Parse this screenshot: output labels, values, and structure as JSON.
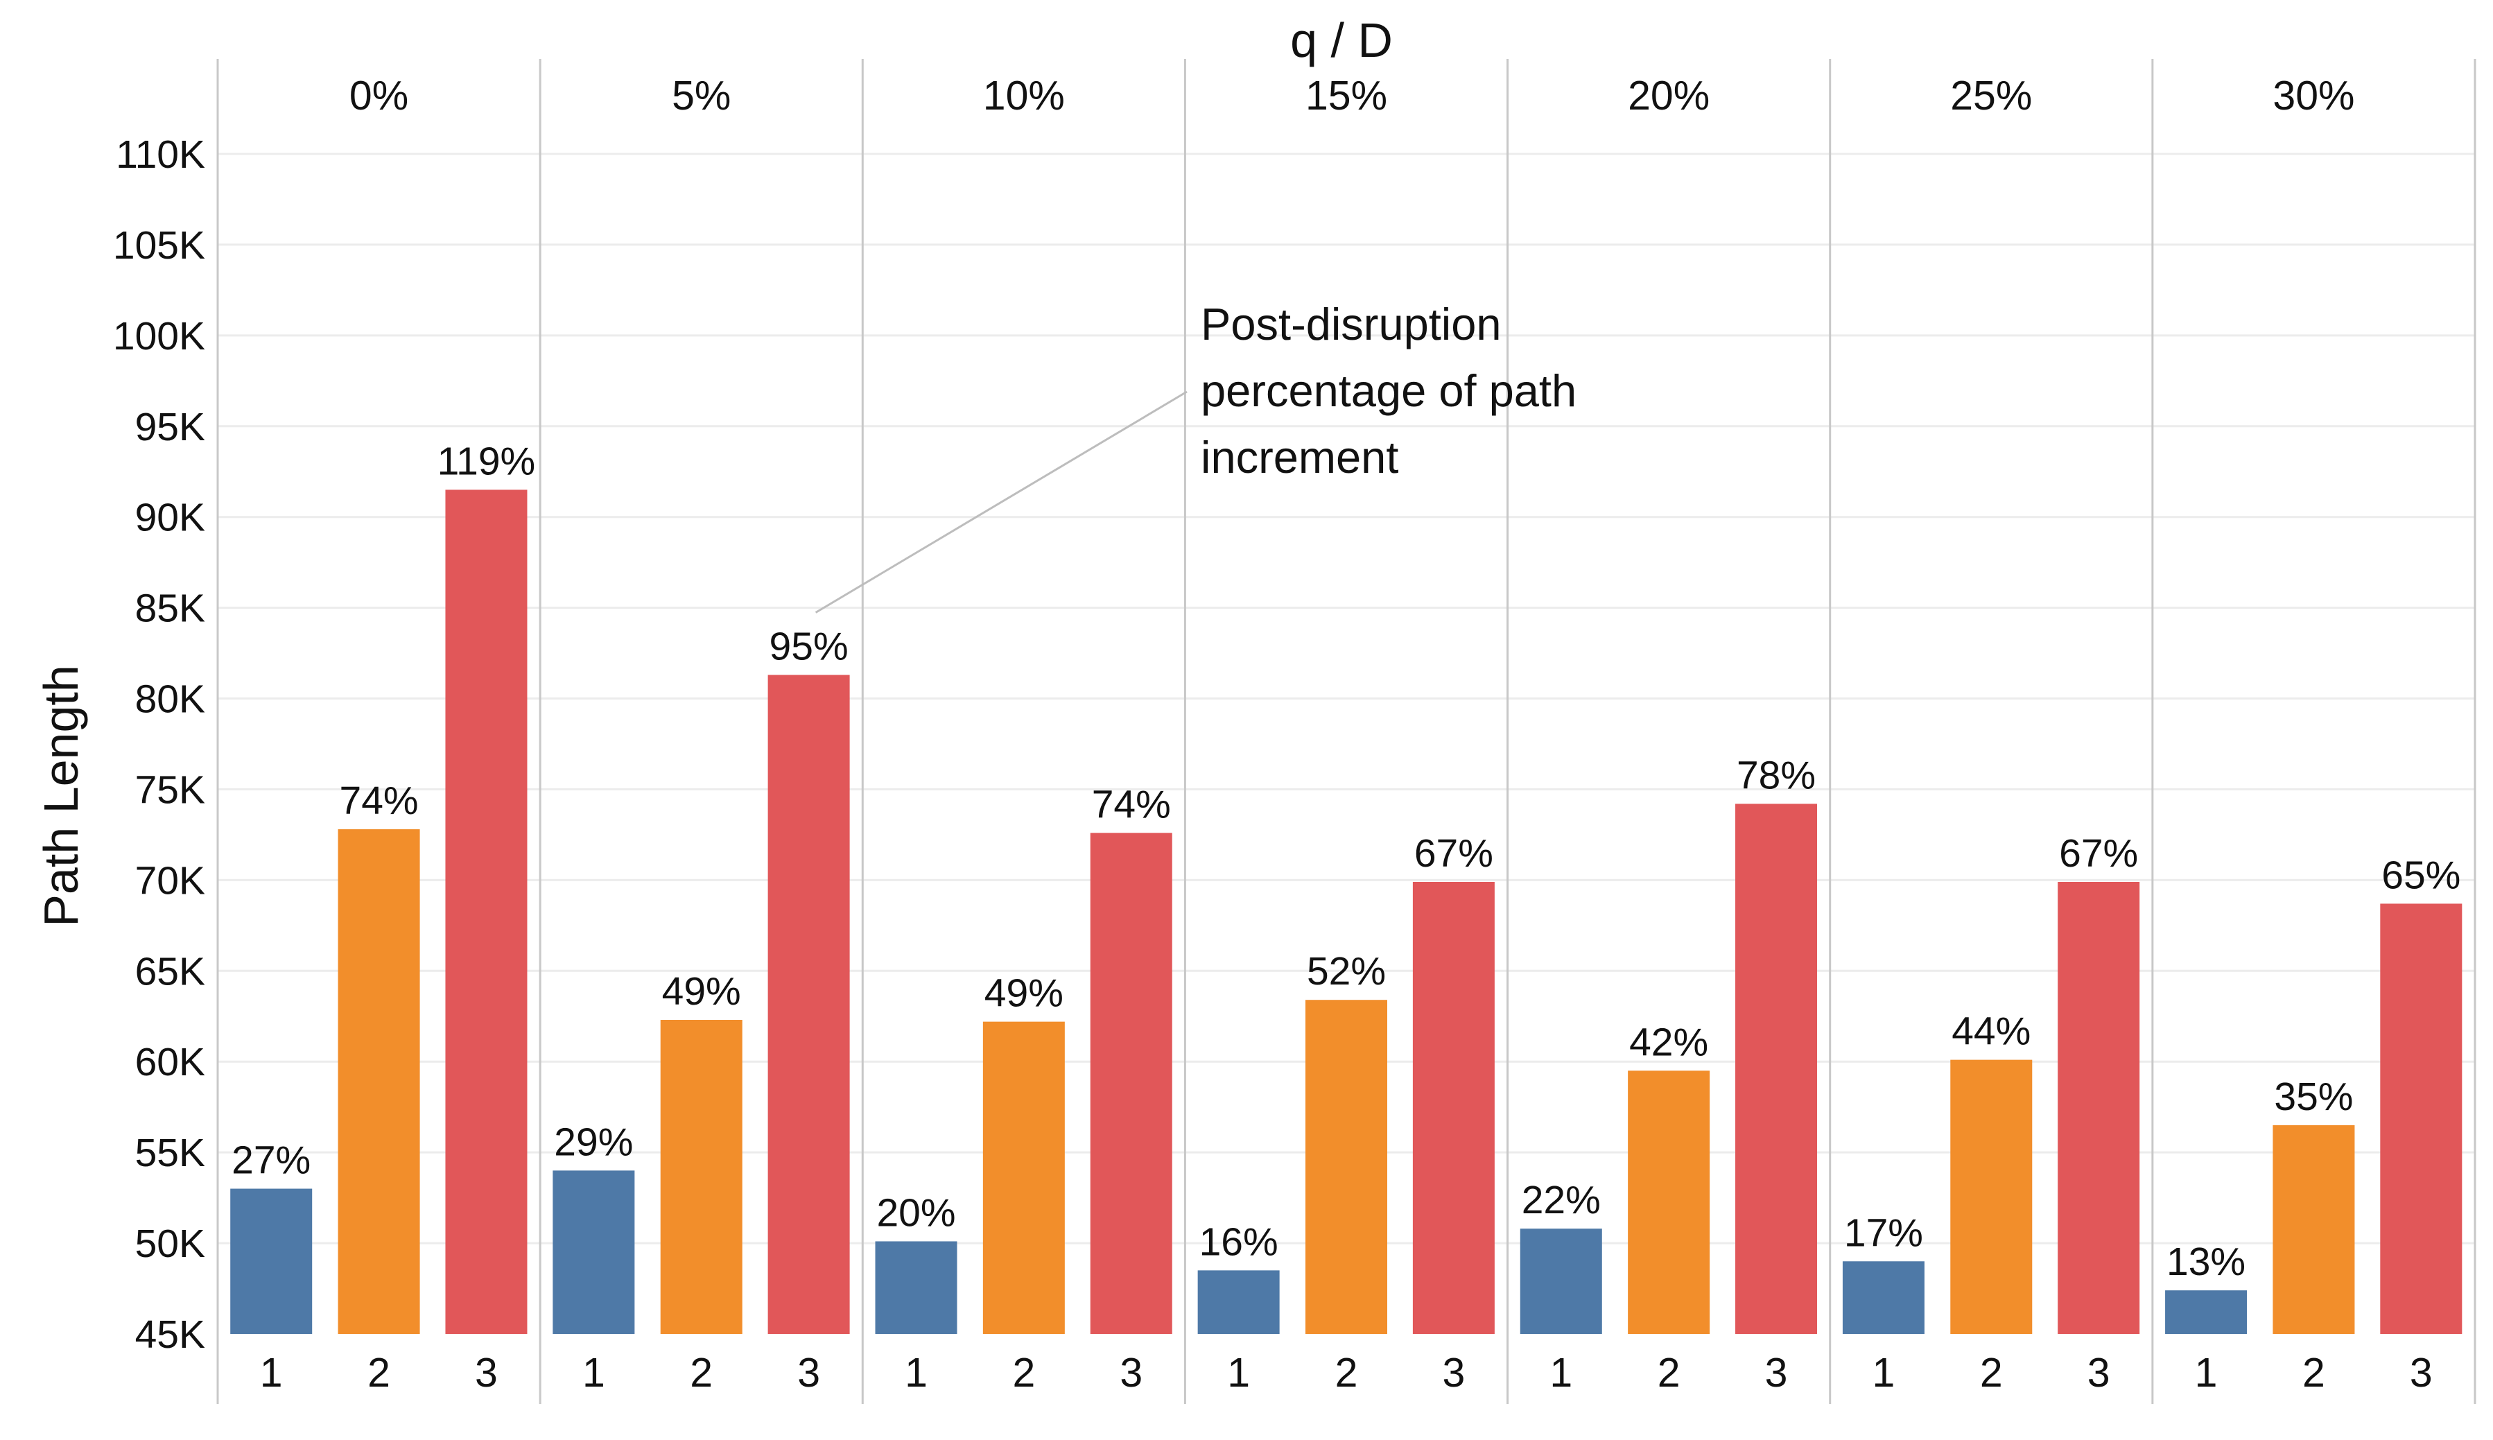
{
  "colors": {
    "series_1": "#4e79a7",
    "series_2": "#f28e2b",
    "series_3": "#e15759",
    "gridline": "#ececec",
    "divider": "#c8c8c8",
    "annotation_line": "#bdbdbd"
  },
  "chart_data": {
    "type": "bar",
    "title": "",
    "facet_title": "q  /  D",
    "xlabel": "",
    "ylabel": "Path Length",
    "ylim": [
      45000,
      110000
    ],
    "yticks": [
      {
        "value": 45000,
        "label": "45K"
      },
      {
        "value": 50000,
        "label": "50K"
      },
      {
        "value": 55000,
        "label": "55K"
      },
      {
        "value": 60000,
        "label": "60K"
      },
      {
        "value": 65000,
        "label": "65K"
      },
      {
        "value": 70000,
        "label": "70K"
      },
      {
        "value": 75000,
        "label": "75K"
      },
      {
        "value": 80000,
        "label": "80K"
      },
      {
        "value": 85000,
        "label": "85K"
      },
      {
        "value": 90000,
        "label": "90K"
      },
      {
        "value": 95000,
        "label": "95K"
      },
      {
        "value": 100000,
        "label": "100K"
      },
      {
        "value": 105000,
        "label": "105K"
      },
      {
        "value": 110000,
        "label": "110K"
      }
    ],
    "bar_categories": [
      "1",
      "2",
      "3"
    ],
    "panels": [
      {
        "label": "0%",
        "values": [
          53000,
          72800,
          91500
        ],
        "bar_labels": [
          "27%",
          "74%",
          "119%"
        ]
      },
      {
        "label": "5%",
        "values": [
          54000,
          62300,
          81300
        ],
        "bar_labels": [
          "29%",
          "49%",
          "95%"
        ]
      },
      {
        "label": "10%",
        "values": [
          50100,
          62200,
          72600
        ],
        "bar_labels": [
          "20%",
          "49%",
          "74%"
        ]
      },
      {
        "label": "15%",
        "values": [
          48500,
          63400,
          69900
        ],
        "bar_labels": [
          "16%",
          "52%",
          "67%"
        ]
      },
      {
        "label": "20%",
        "values": [
          50800,
          59500,
          74200
        ],
        "bar_labels": [
          "22%",
          "42%",
          "78%"
        ]
      },
      {
        "label": "25%",
        "values": [
          49000,
          60100,
          69900
        ],
        "bar_labels": [
          "17%",
          "44%",
          "67%"
        ]
      },
      {
        "label": "30%",
        "values": [
          47400,
          56500,
          68700
        ],
        "bar_labels": [
          "13%",
          "35%",
          "65%"
        ]
      }
    ],
    "annotation": {
      "lines": [
        "Post-disruption",
        "percentage of path",
        "increment"
      ],
      "target_panel": 1,
      "target_bar": 2
    },
    "grid": true,
    "legend": "none"
  }
}
